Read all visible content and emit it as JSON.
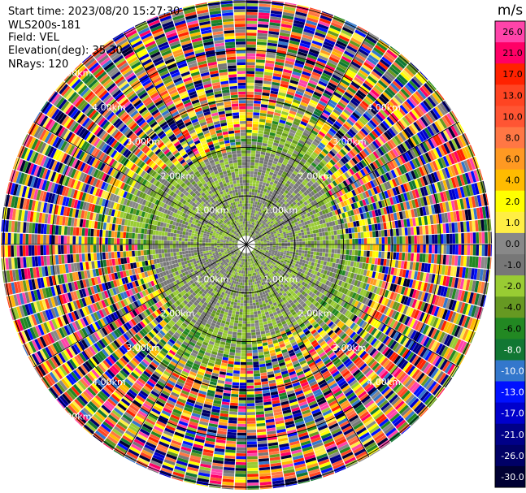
{
  "info": {
    "start_time": "Start time: 2023/08/20 15:27:30",
    "instrument": "WLS200s-181",
    "field": "Field: VEL",
    "elevation": "Elevation(deg): 35.30",
    "nrays": "NRays: 120"
  },
  "colorbar": {
    "unit": "m/s",
    "ticks": [
      "26.0",
      "21.0",
      "17.0",
      "13.0",
      "10.0",
      "8.0",
      "6.0",
      "4.0",
      "2.0",
      "1.0",
      "0.0",
      "-1.0",
      "-2.0",
      "-4.0",
      "-6.0",
      "-8.0",
      "-10.0",
      "-13.0",
      "-17.0",
      "-21.0",
      "-26.0",
      "-30.0"
    ],
    "colors": [
      "#ff44aa",
      "#ff0066",
      "#ff2200",
      "#ff4422",
      "#ff5533",
      "#ff7744",
      "#ff9922",
      "#ffbb00",
      "#ffff00",
      "#ffee44",
      "#888888",
      "#777777",
      "#99cc33",
      "#669922",
      "#228822",
      "#117733",
      "#3377cc",
      "#0011ff",
      "#0000cc",
      "#000088",
      "#000066",
      "#000033"
    ]
  },
  "chart_data": {
    "type": "heatmap",
    "projection": "polar PPI",
    "field": "VEL",
    "units": "m/s",
    "rays": 120,
    "range_rings_km": [
      1,
      2,
      3,
      4,
      5
    ],
    "range_ring_labels": [
      "1.00km",
      "2.00km",
      "3.00km",
      "4.00km",
      "5.00km"
    ],
    "max_range_km": 5.0,
    "radial_profile": [
      {
        "range_km": [
          0,
          1.0
        ],
        "dominant": "-2.0 to 0.0 (light green / gray)"
      },
      {
        "range_km": [
          1.0,
          2.0
        ],
        "dominant": "-2.0 to 0.0 (green / gray)"
      },
      {
        "range_km": [
          2.0,
          2.6
        ],
        "dominant": "-4.0 to 2.0 (green / yellow)"
      },
      {
        "range_km": [
          2.6,
          5.0
        ],
        "dominant": "mixed noise, all bins"
      }
    ]
  }
}
